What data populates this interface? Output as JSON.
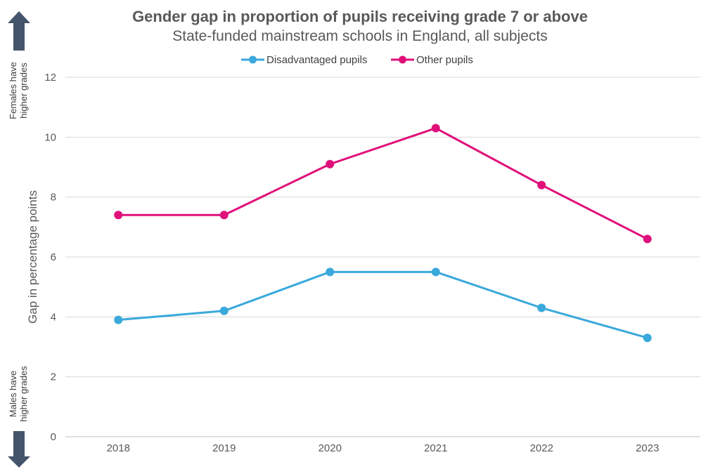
{
  "chart_data": {
    "type": "line",
    "title": "Gender gap in proportion of pupils receiving grade 7 or above",
    "subtitle": "State-funded mainstream schools in England, all subjects",
    "xlabel": "",
    "ylabel": "Gap in percentage points",
    "categories": [
      "2018",
      "2019",
      "2020",
      "2021",
      "2022",
      "2023"
    ],
    "ylim": [
      0,
      12
    ],
    "yticks": [
      "0",
      "2",
      "4",
      "6",
      "8",
      "10",
      "12"
    ],
    "grid": true,
    "legend_position": "top",
    "series": [
      {
        "name": "Disadvantaged pupils",
        "color": "#3aa9dc",
        "values": [
          3.9,
          4.2,
          5.5,
          5.5,
          4.3,
          3.3
        ]
      },
      {
        "name": "Other pupils",
        "color": "#e0107a",
        "values": [
          7.4,
          7.4,
          9.1,
          10.3,
          8.4,
          6.6
        ]
      }
    ],
    "annotations": {
      "top_label": [
        "Females have",
        "higher grades"
      ],
      "bottom_label": [
        "Males have",
        "higher grades"
      ]
    },
    "arrow_color": "#44546a"
  }
}
